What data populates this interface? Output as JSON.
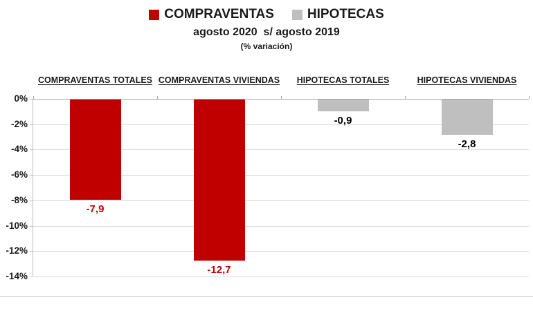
{
  "legend": {
    "items": [
      {
        "label": "COMPRAVENTAS",
        "color": "#C00000"
      },
      {
        "label": "HIPOTECAS",
        "color": "#BFBFBF"
      }
    ]
  },
  "title": {
    "line1": "agosto 2020  s/ agosto 2019",
    "line2": "(% variación)"
  },
  "chart_data": {
    "type": "bar",
    "title": "agosto 2020 s/ agosto 2019 (% variación)",
    "categories": [
      "COMPRAVENTAS TOTALES",
      "COMPRAVENTAS VIVIENDAS",
      "HIPOTECAS TOTALES",
      "HIPOTECAS VIVIENDAS"
    ],
    "values": [
      -7.9,
      -12.7,
      -0.9,
      -2.8
    ],
    "value_labels": [
      "-7,9",
      "-12,7",
      "-0,9",
      "-2,8"
    ],
    "series_of": [
      "COMPRAVENTAS",
      "COMPRAVENTAS",
      "HIPOTECAS",
      "HIPOTECAS"
    ],
    "bar_colors": [
      "#C00000",
      "#C00000",
      "#BFBFBF",
      "#BFBFBF"
    ],
    "label_colors": [
      "#C00000",
      "#C00000",
      "#000000",
      "#000000"
    ],
    "xlabel": "",
    "ylabel": "",
    "ylim": [
      -14,
      0
    ],
    "ytick_step": -2,
    "yticks": [
      "0%",
      "-2%",
      "-4%",
      "-6%",
      "-8%",
      "-10%",
      "-12%",
      "-14%"
    ],
    "grid": "horizontal",
    "legend_position": "top"
  },
  "style": {
    "gridline_color": "#D9D9D9",
    "axis_color": "#A6A6A6",
    "y_axis_color": "#BFBFBF",
    "divider_color": "#C8C8C8"
  }
}
